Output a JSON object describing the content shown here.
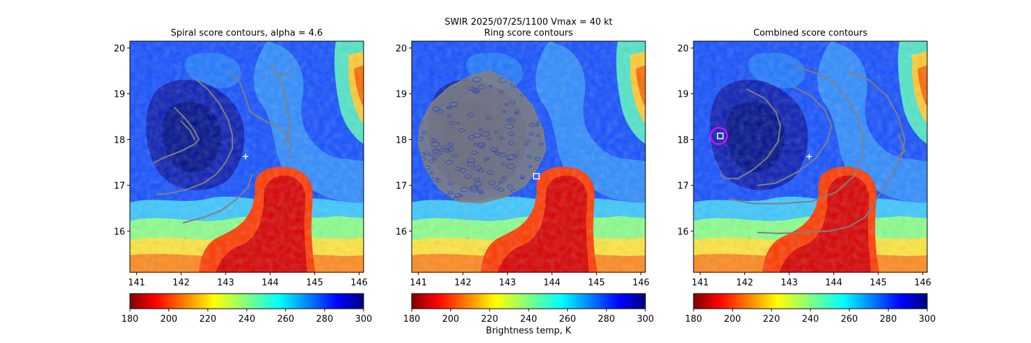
{
  "suptitle": "SWIR  2025/07/25/1100    Vmax = 40 kt",
  "colorbar_label": "Brightness temp, K",
  "chart_data": [
    {
      "type": "heatmap",
      "title": "Spiral score contours, alpha =  4.6",
      "xlim": [
        140.85,
        146.1
      ],
      "ylim": [
        15.1,
        20.15
      ],
      "xticks": [
        141,
        142,
        143,
        144,
        145,
        146
      ],
      "yticks": [
        16,
        17,
        18,
        19,
        20
      ],
      "colormap": "jet_r",
      "colorbar": {
        "range": [
          180,
          300
        ],
        "ticks": [
          180,
          200,
          220,
          240,
          260,
          280,
          300
        ]
      },
      "markers": [
        {
          "symbol": "plus",
          "x": 143.45,
          "y": 17.63,
          "color": "#ffffff"
        }
      ],
      "contours": [
        {
          "color": "#808080",
          "points": [
            [
              142.35,
              19.3
            ],
            [
              142.6,
              19.1
            ],
            [
              142.85,
              18.8
            ],
            [
              143.05,
              18.45
            ],
            [
              143.15,
              18.1
            ],
            [
              143.15,
              17.8
            ],
            [
              143.0,
              17.5
            ],
            [
              142.8,
              17.25
            ],
            [
              142.5,
              17.05
            ],
            [
              142.1,
              16.9
            ],
            [
              141.7,
              16.82
            ],
            [
              141.45,
              16.8
            ]
          ]
        },
        {
          "color": "#808080",
          "points": [
            [
              141.85,
              18.7
            ],
            [
              142.1,
              18.45
            ],
            [
              142.3,
              18.2
            ],
            [
              142.4,
              18.0
            ],
            [
              142.3,
              17.9
            ],
            [
              142.0,
              17.75
            ],
            [
              141.6,
              17.6
            ],
            [
              141.4,
              17.5
            ]
          ]
        },
        {
          "color": "#808080",
          "points": [
            [
              142.3,
              18.0
            ],
            [
              142.2,
              18.2
            ],
            [
              142.0,
              18.4
            ]
          ]
        },
        {
          "color": "#808080",
          "points": [
            [
              142.05,
              16.18
            ],
            [
              142.5,
              16.3
            ],
            [
              142.9,
              16.45
            ],
            [
              143.25,
              16.7
            ],
            [
              143.5,
              16.95
            ],
            [
              143.6,
              17.25
            ]
          ]
        },
        {
          "color": "#808080",
          "points": [
            [
              143.1,
              19.45
            ],
            [
              143.3,
              19.3
            ],
            [
              143.45,
              18.9
            ],
            [
              143.55,
              18.6
            ],
            [
              143.9,
              18.4
            ],
            [
              144.3,
              18.2
            ],
            [
              144.5,
              17.85
            ],
            [
              144.4,
              17.6
            ]
          ]
        },
        {
          "color": "#808080",
          "points": [
            [
              144.0,
              19.6
            ],
            [
              144.2,
              19.4
            ],
            [
              144.45,
              19.45
            ]
          ]
        },
        {
          "color": "#808080",
          "points": [
            [
              144.15,
              19.45
            ],
            [
              144.3,
              19.1
            ],
            [
              144.4,
              18.6
            ],
            [
              144.45,
              18.1
            ],
            [
              144.3,
              17.9
            ]
          ]
        }
      ]
    },
    {
      "type": "heatmap",
      "title": "Ring score contours",
      "xlim": [
        140.85,
        146.1
      ],
      "ylim": [
        15.1,
        20.15
      ],
      "xticks": [
        141,
        142,
        143,
        144,
        145,
        146
      ],
      "yticks": [
        16,
        17,
        18,
        19,
        20
      ],
      "colormap": "jet_r",
      "colorbar": {
        "range": [
          180,
          300
        ],
        "ticks": [
          180,
          200,
          220,
          240,
          260,
          280,
          300
        ]
      },
      "markers": [
        {
          "symbol": "square",
          "x": 143.65,
          "y": 17.2,
          "color": "#ffffff"
        }
      ],
      "dense_region": {
        "color": "#808080",
        "outline": [
          [
            142.2,
            19.4
          ],
          [
            142.6,
            19.5
          ],
          [
            143.1,
            19.25
          ],
          [
            143.55,
            18.75
          ],
          [
            143.8,
            18.2
          ],
          [
            143.85,
            17.75
          ],
          [
            143.65,
            17.35
          ],
          [
            143.4,
            17.0
          ],
          [
            142.95,
            16.75
          ],
          [
            142.4,
            16.62
          ],
          [
            141.9,
            16.65
          ],
          [
            141.45,
            16.95
          ],
          [
            141.15,
            17.4
          ],
          [
            141.0,
            17.9
          ],
          [
            141.05,
            18.35
          ],
          [
            141.3,
            18.8
          ],
          [
            141.7,
            19.15
          ]
        ]
      },
      "contours": []
    },
    {
      "type": "heatmap",
      "title": "Combined score contours",
      "xlim": [
        140.85,
        146.1
      ],
      "ylim": [
        15.1,
        20.15
      ],
      "xticks": [
        141,
        142,
        143,
        144,
        145,
        146
      ],
      "yticks": [
        16,
        17,
        18,
        19,
        20
      ],
      "colormap": "jet_r",
      "colorbar": {
        "range": [
          180,
          300
        ],
        "ticks": [
          180,
          200,
          220,
          240,
          260,
          280,
          300
        ]
      },
      "markers": [
        {
          "symbol": "plus",
          "x": 143.45,
          "y": 17.63,
          "color": "#ffffff"
        },
        {
          "symbol": "square",
          "x": 141.45,
          "y": 18.08,
          "color": "#ffffff"
        },
        {
          "symbol": "circle",
          "x": 141.42,
          "y": 18.08,
          "color": "#ff00ff"
        }
      ],
      "contours": [
        {
          "color": "#808080",
          "points": [
            [
              142.05,
              19.1
            ],
            [
              142.45,
              18.9
            ],
            [
              142.7,
              18.6
            ],
            [
              142.8,
              18.3
            ],
            [
              142.75,
              17.95
            ],
            [
              142.5,
              17.6
            ],
            [
              142.2,
              17.35
            ],
            [
              141.85,
              17.15
            ],
            [
              141.55,
              17.15
            ],
            [
              141.45,
              17.25
            ]
          ]
        },
        {
          "color": "#808080",
          "points": [
            [
              143.1,
              19.15
            ],
            [
              143.5,
              18.95
            ],
            [
              143.8,
              18.65
            ],
            [
              143.95,
              18.3
            ],
            [
              143.85,
              17.95
            ],
            [
              143.6,
              17.6
            ],
            [
              143.2,
              17.3
            ],
            [
              142.7,
              17.05
            ],
            [
              142.3,
              17.0
            ]
          ]
        },
        {
          "color": "#808080",
          "points": [
            [
              143.15,
              19.6
            ],
            [
              143.6,
              19.45
            ],
            [
              144.0,
              19.25
            ],
            [
              144.3,
              18.9
            ],
            [
              144.5,
              18.55
            ],
            [
              144.65,
              18.1
            ],
            [
              144.65,
              17.65
            ],
            [
              144.45,
              17.2
            ],
            [
              144.05,
              16.85
            ],
            [
              143.5,
              16.65
            ],
            [
              142.8,
              16.6
            ],
            [
              142.2,
              16.6
            ],
            [
              141.65,
              16.7
            ]
          ]
        },
        {
          "color": "#808080",
          "points": [
            [
              144.3,
              19.5
            ],
            [
              144.8,
              19.3
            ],
            [
              145.2,
              18.95
            ],
            [
              145.45,
              18.5
            ],
            [
              145.6,
              18.0
            ],
            [
              145.5,
              17.55
            ],
            [
              145.2,
              17.05
            ],
            [
              144.9,
              16.6
            ],
            [
              144.7,
              16.3
            ],
            [
              144.35,
              16.1
            ],
            [
              143.9,
              16.0
            ],
            [
              143.3,
              15.97
            ],
            [
              142.75,
              15.95
            ],
            [
              142.3,
              15.97
            ]
          ]
        },
        {
          "color": "#808080",
          "points": [
            [
              145.45,
              18.1
            ],
            [
              145.6,
              17.75
            ],
            [
              145.4,
              17.6
            ]
          ]
        }
      ]
    }
  ]
}
